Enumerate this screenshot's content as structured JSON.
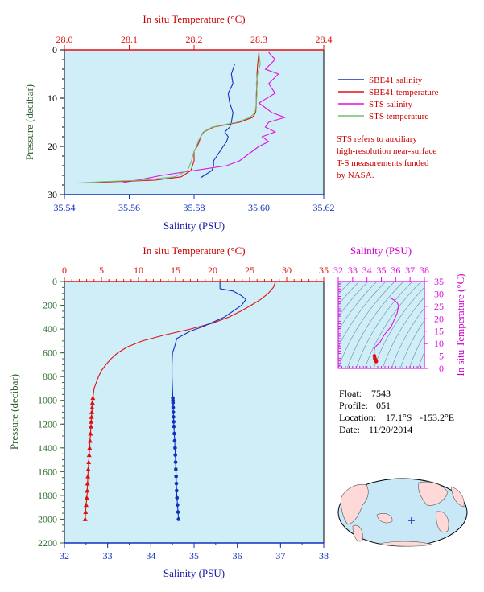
{
  "colors": {
    "red": "#e01010",
    "blue": "#1030c0",
    "magenta": "#e010e0",
    "green": "#70c070",
    "axis_green": "#2e6b2e",
    "plot_bg": "#d0eef8",
    "ts_bg": "#d0eef8",
    "map_ocean": "#c8e8f8",
    "map_land": "#ffd8d8"
  },
  "chart_data": [
    {
      "type": "line",
      "title": "",
      "top_axis_label": "In situ Temperature (°C)",
      "top_ticks": [
        "28.0",
        "28.1",
        "28.2",
        "28.3",
        "28.4"
      ],
      "bottom_axis_label": "Salinity (PSU)",
      "bottom_ticks": [
        "35.54",
        "35.56",
        "35.58",
        "35.60",
        "35.62"
      ],
      "ylabel": "Pressure (decibar)",
      "y_ticks": [
        "0",
        "10",
        "20",
        "30"
      ],
      "xlim_salinity": [
        35.54,
        35.62
      ],
      "xlim_temperature": [
        28.0,
        28.4
      ],
      "ylim": [
        0,
        30
      ],
      "legend": [
        {
          "name": "SBE41 salinity",
          "color": "#1030c0"
        },
        {
          "name": "SBE41 temperature",
          "color": "#e01010"
        },
        {
          "name": "STS salinity",
          "color": "#e010e0"
        },
        {
          "name": "STS temperature",
          "color": "#70c070"
        }
      ],
      "note": [
        "STS refers to auxiliary",
        "high-resolution near-surface",
        "T-S measurements funded",
        "by NASA."
      ],
      "series": [
        {
          "name": "SBE41 salinity",
          "axis": "salinity",
          "x": [
            35.5925,
            35.5915,
            35.592,
            35.5905,
            35.591,
            35.592,
            35.5915,
            35.591,
            35.5895,
            35.5905,
            35.59,
            35.589,
            35.588,
            35.587,
            35.586,
            35.586,
            35.5855,
            35.582
          ],
          "y": [
            3,
            5,
            7,
            9,
            11,
            13,
            15,
            16,
            17,
            18,
            19,
            20,
            21,
            22,
            23,
            24,
            25,
            26.5
          ]
        },
        {
          "name": "STS salinity",
          "axis": "salinity",
          "x": [
            35.603,
            35.605,
            35.602,
            35.606,
            35.603,
            35.605,
            35.6,
            35.604,
            35.608,
            35.603,
            35.602,
            35.605,
            35.601,
            35.603,
            35.6,
            35.598,
            35.596,
            35.594,
            35.59,
            35.58,
            35.57,
            35.564,
            35.558
          ],
          "y": [
            0.5,
            2,
            4,
            5,
            7,
            9,
            11,
            13,
            14,
            15,
            16,
            17,
            18,
            19,
            20,
            21,
            22,
            23,
            24,
            25,
            26,
            26.8,
            27.5
          ]
        },
        {
          "name": "SBE41 temperature",
          "axis": "temperature",
          "x": [
            28.3,
            28.298,
            28.297,
            28.297,
            28.296,
            28.296,
            28.295,
            28.29,
            28.27,
            28.25,
            28.23,
            28.215,
            28.21,
            28.208,
            28.205,
            28.2,
            28.2,
            28.2,
            28.195,
            28.18,
            28.14,
            28.08,
            28.03
          ],
          "y": [
            0.5,
            3,
            5,
            7,
            9,
            11,
            13,
            14,
            15,
            15.5,
            16,
            17,
            18,
            19,
            20,
            21,
            22,
            23,
            25,
            26.3,
            27,
            27.3,
            27.6
          ]
        },
        {
          "name": "STS temperature",
          "axis": "temperature",
          "x": [
            28.3,
            28.302,
            28.298,
            28.296,
            28.297,
            28.296,
            28.294,
            28.286,
            28.266,
            28.246,
            28.228,
            28.214,
            28.21,
            28.206,
            28.204,
            28.2,
            28.198,
            28.196,
            28.19,
            28.17,
            28.12,
            28.06,
            28.02
          ],
          "y": [
            0.5,
            3,
            5,
            7,
            9,
            11,
            13,
            14,
            15,
            15.5,
            16,
            17,
            18,
            19,
            20,
            21,
            22,
            23,
            25,
            26.3,
            27,
            27.3,
            27.6
          ]
        }
      ]
    },
    {
      "type": "line",
      "title": "",
      "top_axis_label": "In situ Temperature (°C)",
      "top_ticks": [
        "0",
        "5",
        "10",
        "15",
        "20",
        "25",
        "30",
        "35"
      ],
      "bottom_axis_label": "Salinity (PSU)",
      "bottom_ticks": [
        "32",
        "33",
        "34",
        "35",
        "36",
        "37",
        "38"
      ],
      "ylabel": "Pressure (decibar)",
      "y_ticks": [
        "0",
        "200",
        "400",
        "600",
        "800",
        "1000",
        "1200",
        "1400",
        "1600",
        "1800",
        "2000",
        "2200"
      ],
      "xlim_salinity": [
        32,
        38
      ],
      "xlim_temperature": [
        0,
        35
      ],
      "ylim": [
        0,
        2200
      ],
      "series": [
        {
          "name": "Temperature",
          "axis": "temperature",
          "x": [
            28.5,
            28.2,
            27.5,
            26.5,
            25.2,
            23.8,
            22.2,
            20.0,
            17.0,
            13.5,
            10.5,
            8.5,
            7.2,
            6.3,
            5.6,
            5.0,
            4.6,
            4.3,
            4.0,
            3.8,
            3.6,
            3.4,
            3.2,
            3.05,
            2.9,
            2.8
          ],
          "y": [
            0,
            50,
            100,
            150,
            200,
            250,
            300,
            350,
            400,
            450,
            500,
            550,
            600,
            650,
            700,
            750,
            800,
            850,
            900,
            1000,
            1200,
            1400,
            1600,
            1800,
            1900,
            2000
          ]
        },
        {
          "name": "Salinity",
          "axis": "salinity",
          "x": [
            35.6,
            35.6,
            35.9,
            36.1,
            36.2,
            36.1,
            35.7,
            35.2,
            34.9,
            34.6,
            34.55,
            34.5,
            34.49,
            34.49,
            34.5,
            34.51,
            34.53,
            34.56,
            34.58,
            34.6,
            34.62,
            34.64
          ],
          "y": [
            0,
            60,
            80,
            120,
            150,
            200,
            300,
            380,
            420,
            480,
            550,
            600,
            700,
            800,
            900,
            1000,
            1200,
            1400,
            1600,
            1800,
            1900,
            2000
          ]
        }
      ],
      "temperature_markers_y": [
        980,
        1020,
        1060,
        1100,
        1140,
        1180,
        1220,
        1280,
        1340,
        1400,
        1460,
        1520,
        1580,
        1640,
        1700,
        1760,
        1820,
        1880,
        1940,
        2000
      ],
      "salinity_markers_y": [
        980,
        1000,
        1020,
        1060,
        1100,
        1140,
        1180,
        1220,
        1280,
        1340,
        1400,
        1460,
        1520,
        1580,
        1640,
        1700,
        1760,
        1820,
        1880,
        1940,
        2000
      ]
    },
    {
      "type": "line",
      "title": "",
      "top_axis_label": "Salinity (PSU)",
      "top_ticks": [
        "32",
        "33",
        "34",
        "35",
        "36",
        "37",
        "38"
      ],
      "right_axis_label": "In situ Temperature (°C)",
      "right_ticks": [
        "0",
        "5",
        "10",
        "15",
        "20",
        "25",
        "30",
        "35"
      ],
      "xlim": [
        32,
        38
      ],
      "ylim": [
        0,
        35
      ],
      "series": [
        {
          "name": "T-S",
          "x": [
            34.64,
            34.6,
            34.55,
            34.52,
            34.5,
            34.55,
            34.9,
            35.2,
            35.7,
            36.1,
            36.2,
            36.1,
            35.9,
            35.6
          ],
          "y": [
            2.8,
            3.4,
            4.0,
            5.0,
            7.2,
            8.5,
            10.5,
            13.5,
            17.0,
            22.2,
            25.2,
            26.5,
            27.5,
            28.5
          ]
        }
      ]
    }
  ],
  "float_info": {
    "float_label": "Float:",
    "float_value": "7543",
    "profile_label": "Profile:",
    "profile_value": "051",
    "location_label": "Location:",
    "location_lat": "17.1°S",
    "location_lon": "-153.2°E",
    "date_label": "Date:",
    "date_value": "11/20/2014"
  }
}
